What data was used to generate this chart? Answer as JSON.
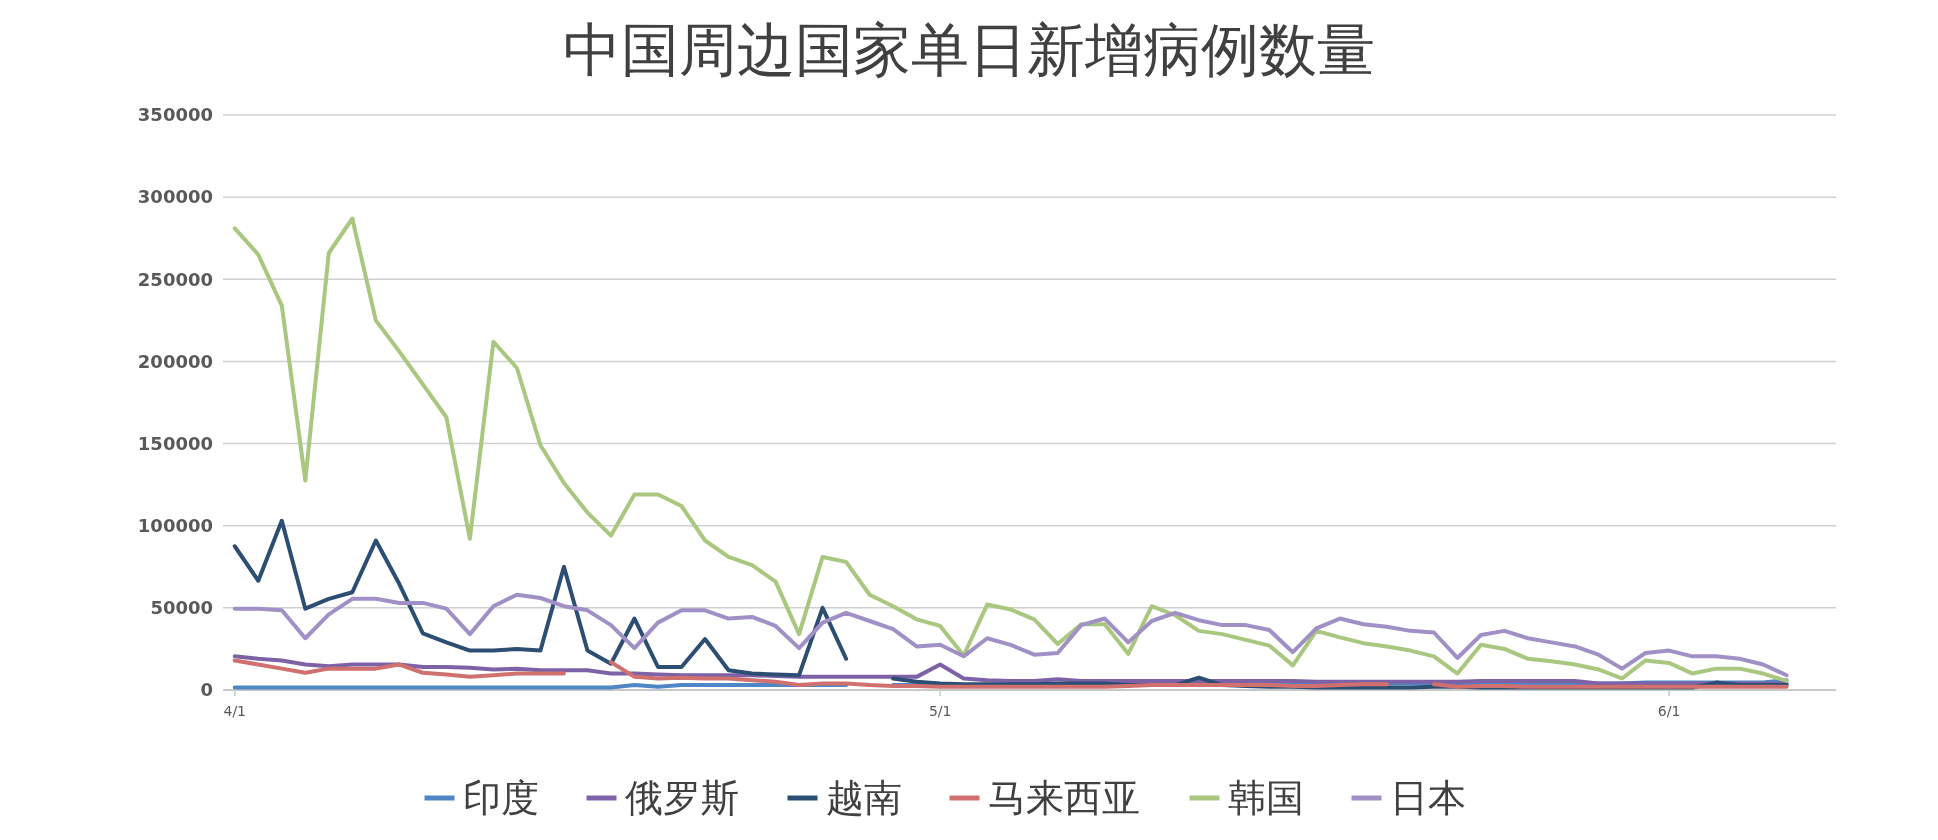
{
  "chart_data": {
    "type": "line",
    "title": "中国周边国家单日新增病例数量",
    "categories": [
      "4/1",
      null,
      null,
      null,
      null,
      null,
      null,
      null,
      null,
      null,
      null,
      null,
      null,
      null,
      null,
      null,
      null,
      null,
      null,
      null,
      null,
      null,
      null,
      null,
      null,
      null,
      null,
      null,
      null,
      null,
      "5/1",
      null,
      null,
      null,
      null,
      null,
      null,
      null,
      null,
      null,
      null,
      null,
      null,
      null,
      null,
      null,
      null,
      null,
      null,
      null,
      null,
      null,
      null,
      null,
      null,
      null,
      null,
      null,
      null,
      null,
      null,
      "6/1",
      null,
      null,
      null,
      null,
      null
    ],
    "ylim": [
      0,
      350000
    ],
    "yticks": [
      0,
      50000,
      100000,
      150000,
      200000,
      250000,
      300000,
      350000
    ],
    "grid": "y",
    "legend": "bottom",
    "series": [
      {
        "name": "印度",
        "color": "#4f86c6",
        "values": [
          1500,
          1500,
          1500,
          1500,
          1500,
          1500,
          1500,
          1500,
          1500,
          1500,
          1500,
          1500,
          1500,
          1500,
          1500,
          1500,
          1500,
          3000,
          2000,
          3000,
          3000,
          3000,
          3000,
          3000,
          3000,
          3000,
          3000,
          null,
          3000,
          3000,
          3000,
          3000,
          3000,
          3000,
          3000,
          3000,
          3000,
          3000,
          3000,
          3000,
          4000,
          4000,
          4000,
          4000,
          4000,
          4000,
          4000,
          4000,
          4000,
          4000,
          4000,
          4000,
          4000,
          4000,
          4000,
          4000,
          4000,
          4000,
          4000,
          4000,
          4500,
          4500,
          4500,
          4500,
          4500,
          4500,
          6000
        ]
      },
      {
        "name": "俄罗斯",
        "color": "#7e62a8",
        "values": [
          20500,
          19000,
          18000,
          15500,
          14500,
          15500,
          15500,
          15500,
          14000,
          14000,
          13500,
          12500,
          13000,
          12000,
          12000,
          12000,
          10000,
          10000,
          9500,
          9000,
          9000,
          9000,
          9000,
          8500,
          8000,
          8000,
          8000,
          8000,
          8000,
          8000,
          15500,
          7000,
          6000,
          5500,
          5500,
          6500,
          5500,
          5500,
          5500,
          5500,
          5500,
          5500,
          5500,
          5500,
          5500,
          5500,
          5000,
          5000,
          5000,
          5000,
          5000,
          5000,
          5000,
          5500,
          5500,
          5500,
          5500,
          5500,
          4000,
          4000,
          4000,
          4000,
          4000,
          4000,
          4000,
          4000,
          4000
        ]
      },
      {
        "name": "越南",
        "color": "#2d4e73",
        "values": [
          87500,
          66500,
          103000,
          49500,
          55500,
          59500,
          91000,
          64500,
          34500,
          29000,
          24000,
          24000,
          25000,
          24000,
          75000,
          24000,
          16000,
          43500,
          14000,
          14000,
          31000,
          12000,
          10000,
          9500,
          9000,
          50000,
          19000,
          null,
          7000,
          5000,
          4000,
          3500,
          3500,
          3500,
          3500,
          4000,
          4000,
          4000,
          3000,
          3000,
          3000,
          7500,
          3000,
          2500,
          2000,
          2000,
          1500,
          1500,
          1500,
          1500,
          1500,
          2000,
          2000,
          1500,
          1500,
          1500,
          1500,
          1500,
          1500,
          1500,
          1500,
          1500,
          1500,
          4500,
          3000,
          3000,
          3000
        ]
      },
      {
        "name": "马来西亚",
        "color": "#d0706f",
        "values": [
          18000,
          15500,
          13000,
          10500,
          13000,
          13000,
          13000,
          15500,
          10500,
          9500,
          8000,
          9000,
          10000,
          10000,
          10000,
          null,
          17000,
          8000,
          7000,
          7500,
          7000,
          7000,
          6000,
          5000,
          3000,
          4000,
          4000,
          3000,
          2500,
          2500,
          2000,
          2000,
          2000,
          2000,
          2000,
          2000,
          2000,
          2000,
          2500,
          3000,
          3000,
          3000,
          3000,
          3000,
          3000,
          2500,
          2500,
          3000,
          3500,
          3500,
          null,
          3500,
          2000,
          2500,
          2500,
          2000,
          2000,
          2000,
          2000,
          2000,
          2000,
          2000,
          2000,
          2000,
          2000,
          2000,
          2000
        ]
      },
      {
        "name": "韩国",
        "color": "#a9c77f",
        "values": [
          281000,
          265000,
          234000,
          127500,
          266000,
          287000,
          225000,
          206000,
          186000,
          166000,
          92000,
          212000,
          196000,
          149000,
          126000,
          108000,
          94000,
          119000,
          119000,
          112000,
          91000,
          81000,
          76000,
          66000,
          34000,
          81000,
          78000,
          58000,
          51000,
          43000,
          39000,
          21000,
          52000,
          49000,
          43000,
          28000,
          40000,
          40000,
          22000,
          51000,
          45500,
          36000,
          34000,
          30500,
          27000,
          15000,
          36000,
          32000,
          28500,
          26500,
          24000,
          20500,
          10000,
          27500,
          25000,
          19000,
          17500,
          15500,
          12500,
          7000,
          18000,
          16500,
          10000,
          13000,
          13000,
          10000,
          5500
        ]
      },
      {
        "name": "日本",
        "color": "#a190c5",
        "values": [
          49500,
          49500,
          48500,
          31500,
          46000,
          55500,
          55500,
          53000,
          53000,
          49500,
          34000,
          51000,
          58000,
          56000,
          51000,
          48500,
          39500,
          25500,
          41000,
          48500,
          48500,
          43500,
          44500,
          39000,
          25500,
          41000,
          47000,
          42000,
          37000,
          26500,
          27500,
          20500,
          31500,
          27500,
          21500,
          22500,
          39500,
          43500,
          29000,
          42000,
          47000,
          42500,
          39500,
          39500,
          36500,
          23000,
          37500,
          43500,
          40000,
          38500,
          36000,
          35000,
          19500,
          33500,
          36000,
          31500,
          29000,
          26500,
          21500,
          13000,
          22500,
          24000,
          20500,
          20500,
          19000,
          15500,
          9000
        ]
      }
    ]
  }
}
